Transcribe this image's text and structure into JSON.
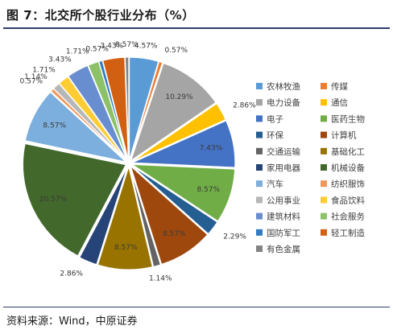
{
  "figure": {
    "title": "图 7：北交所个股行业分布（%）",
    "source": "资料来源：Wind，中原证券"
  },
  "chart_data": {
    "type": "pie",
    "legend_position": "right",
    "series": [
      {
        "name": "农林牧渔",
        "value": 4.57,
        "color": "#5b9bd5"
      },
      {
        "name": "传媒",
        "value": 0.57,
        "color": "#ed7d31"
      },
      {
        "name": "电力设备",
        "value": 10.29,
        "color": "#a5a5a5"
      },
      {
        "name": "通信",
        "value": 2.86,
        "color": "#ffc000"
      },
      {
        "name": "电子",
        "value": 7.43,
        "color": "#4472c4"
      },
      {
        "name": "医药生物",
        "value": 8.57,
        "color": "#70ad47"
      },
      {
        "name": "环保",
        "value": 2.29,
        "color": "#255e91"
      },
      {
        "name": "计算机",
        "value": 8.57,
        "color": "#9e480e"
      },
      {
        "name": "交通运输",
        "value": 1.14,
        "color": "#636363"
      },
      {
        "name": "基础化工",
        "value": 8.57,
        "color": "#997300"
      },
      {
        "name": "家用电器",
        "value": 2.86,
        "color": "#264478"
      },
      {
        "name": "机械设备",
        "value": 20.57,
        "color": "#43682b"
      },
      {
        "name": "汽车",
        "value": 8.57,
        "color": "#7cafdd"
      },
      {
        "name": "纺织服饰",
        "value": 0.57,
        "color": "#f1975a"
      },
      {
        "name": "公用事业",
        "value": 1.14,
        "color": "#b7b7b7"
      },
      {
        "name": "食品饮料",
        "value": 1.71,
        "color": "#ffcd33"
      },
      {
        "name": "建筑材料",
        "value": 3.43,
        "color": "#698ed0"
      },
      {
        "name": "社会服务",
        "value": 1.71,
        "color": "#8cc168"
      },
      {
        "name": "国防军工",
        "value": 0.57,
        "color": "#327dc2"
      },
      {
        "name": "轻工制造",
        "value": 3.43,
        "color": "#d26012"
      },
      {
        "name": "有色金属",
        "value": 0.57,
        "color": "#848484"
      }
    ]
  }
}
